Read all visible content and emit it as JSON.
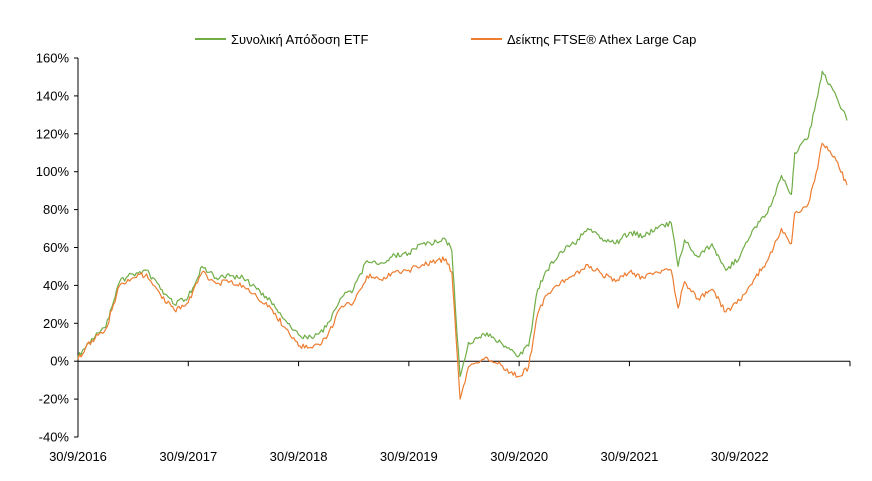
{
  "chart_data": {
    "type": "line",
    "legend_position": "top",
    "grid": false,
    "ylim": [
      -40,
      160
    ],
    "y_ticks": [
      "-40%",
      "-20%",
      "0%",
      "20%",
      "40%",
      "60%",
      "80%",
      "100%",
      "120%",
      "140%",
      "160%"
    ],
    "y_tick_values": [
      -40,
      -20,
      0,
      20,
      40,
      60,
      80,
      100,
      120,
      140,
      160
    ],
    "x_ticks": [
      "30/9/2016",
      "30/9/2017",
      "30/9/2018",
      "30/9/2019",
      "30/9/2020",
      "30/9/2021",
      "30/9/2022"
    ],
    "x_range": [
      "2016-09-30",
      "2023-09-30"
    ],
    "series": [
      {
        "name": "Συνολική Απόδοση ETF",
        "color": "#70AD47",
        "x": [
          "2016-09-30",
          "2016-11-15",
          "2016-12-31",
          "2017-02-15",
          "2017-03-31",
          "2017-05-15",
          "2017-06-30",
          "2017-08-15",
          "2017-09-30",
          "2017-11-15",
          "2017-12-31",
          "2018-02-15",
          "2018-03-31",
          "2018-05-15",
          "2018-06-30",
          "2018-08-15",
          "2018-09-30",
          "2018-11-15",
          "2018-12-31",
          "2019-02-15",
          "2019-03-31",
          "2019-05-15",
          "2019-06-30",
          "2019-08-15",
          "2019-09-30",
          "2019-11-15",
          "2019-12-31",
          "2020-01-31",
          "2020-02-20",
          "2020-03-05",
          "2020-03-18",
          "2020-04-15",
          "2020-05-15",
          "2020-06-15",
          "2020-07-31",
          "2020-08-31",
          "2020-09-30",
          "2020-10-31",
          "2020-11-30",
          "2020-12-31",
          "2021-02-15",
          "2021-03-31",
          "2021-05-15",
          "2021-06-30",
          "2021-08-15",
          "2021-09-30",
          "2021-11-15",
          "2021-12-31",
          "2022-02-15",
          "2022-03-10",
          "2022-03-31",
          "2022-05-15",
          "2022-06-30",
          "2022-08-15",
          "2022-09-30",
          "2022-11-15",
          "2022-12-31",
          "2023-02-15",
          "2023-03-20",
          "2023-03-31",
          "2023-05-15",
          "2023-06-15",
          "2023-06-30",
          "2023-08-15",
          "2023-09-20"
        ],
        "values": [
          2,
          12,
          18,
          42,
          46,
          48,
          38,
          30,
          34,
          50,
          44,
          45,
          44,
          38,
          32,
          22,
          14,
          12,
          18,
          33,
          38,
          53,
          52,
          56,
          57,
          62,
          63,
          64,
          58,
          22,
          -8,
          10,
          12,
          15,
          10,
          6,
          3,
          8,
          38,
          48,
          58,
          62,
          70,
          65,
          62,
          68,
          66,
          70,
          73,
          50,
          64,
          55,
          62,
          48,
          55,
          70,
          78,
          98,
          88,
          110,
          118,
          140,
          153,
          140,
          127
        ]
      },
      {
        "name": "Δείκτης FTSE® Athex Large Cap",
        "color": "#ED7D31",
        "x": [
          "2016-09-30",
          "2016-11-15",
          "2016-12-31",
          "2017-02-15",
          "2017-03-31",
          "2017-05-15",
          "2017-06-30",
          "2017-08-15",
          "2017-09-30",
          "2017-11-15",
          "2017-12-31",
          "2018-02-15",
          "2018-03-31",
          "2018-05-15",
          "2018-06-30",
          "2018-08-15",
          "2018-09-30",
          "2018-11-15",
          "2018-12-31",
          "2019-02-15",
          "2019-03-31",
          "2019-05-15",
          "2019-06-30",
          "2019-08-15",
          "2019-09-30",
          "2019-11-15",
          "2019-12-31",
          "2020-01-31",
          "2020-02-20",
          "2020-03-05",
          "2020-03-18",
          "2020-04-15",
          "2020-05-15",
          "2020-06-15",
          "2020-07-31",
          "2020-08-31",
          "2020-09-30",
          "2020-10-31",
          "2020-11-30",
          "2020-12-31",
          "2021-02-15",
          "2021-03-31",
          "2021-05-15",
          "2021-06-30",
          "2021-08-15",
          "2021-09-30",
          "2021-11-15",
          "2021-12-31",
          "2022-02-15",
          "2022-03-10",
          "2022-03-31",
          "2022-05-15",
          "2022-06-30",
          "2022-08-15",
          "2022-09-30",
          "2022-11-15",
          "2022-12-31",
          "2023-02-15",
          "2023-03-20",
          "2023-03-31",
          "2023-05-15",
          "2023-06-15",
          "2023-06-30",
          "2023-08-15",
          "2023-09-20"
        ],
        "values": [
          1,
          11,
          17,
          40,
          44,
          46,
          35,
          27,
          31,
          47,
          41,
          42,
          40,
          34,
          28,
          18,
          8,
          7,
          12,
          28,
          31,
          45,
          43,
          47,
          48,
          51,
          53,
          54,
          47,
          12,
          -20,
          -3,
          -1,
          2,
          -2,
          -6,
          -8,
          -3,
          25,
          35,
          42,
          45,
          51,
          46,
          42,
          47,
          44,
          47,
          48,
          28,
          42,
          33,
          38,
          26,
          32,
          43,
          53,
          70,
          62,
          78,
          83,
          102,
          115,
          106,
          93
        ]
      }
    ]
  }
}
